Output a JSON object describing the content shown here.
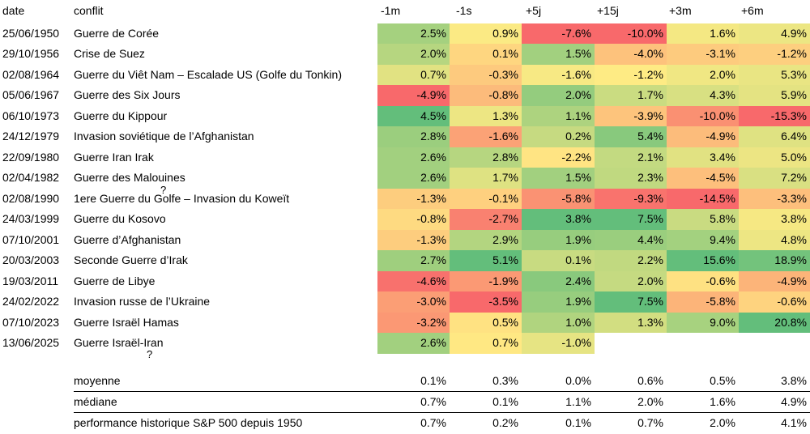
{
  "headers": {
    "date": "date",
    "conflict": "conflit",
    "cols": [
      "-1m",
      "-1s",
      "+5j",
      "+15j",
      "+3m",
      "+6m"
    ]
  },
  "rows": [
    {
      "date": "25/06/1950",
      "conflict": "Guerre de Corée",
      "values": [
        2.5,
        0.9,
        -7.6,
        -10.0,
        1.6,
        4.9
      ],
      "labels": [
        "2.5%",
        "0.9%",
        "-7.6%",
        "-10.0%",
        "1.6%",
        "4.9%"
      ]
    },
    {
      "date": "29/10/1956",
      "conflict": "Crise de Suez",
      "values": [
        2.0,
        0.1,
        1.5,
        -4.0,
        -3.1,
        -1.2
      ],
      "labels": [
        "2.0%",
        "0.1%",
        "1.5%",
        "-4.0%",
        "-3.1%",
        "-1.2%"
      ]
    },
    {
      "date": "02/08/1964",
      "conflict": "Guerre du Viêt Nam – Escalade US (Golfe du Tonkin)",
      "values": [
        0.7,
        -0.3,
        -1.6,
        -1.2,
        2.0,
        5.3
      ],
      "labels": [
        "0.7%",
        "-0.3%",
        "-1.6%",
        "-1.2%",
        "2.0%",
        "5.3%"
      ]
    },
    {
      "date": "05/06/1967",
      "conflict": "Guerre des Six Jours",
      "values": [
        -4.9,
        -0.8,
        2.0,
        1.7,
        4.3,
        5.9
      ],
      "labels": [
        "-4.9%",
        "-0.8%",
        "2.0%",
        "1.7%",
        "4.3%",
        "5.9%"
      ]
    },
    {
      "date": "06/10/1973",
      "conflict": "Guerre du Kippour",
      "values": [
        4.5,
        1.3,
        1.1,
        -3.9,
        -10.0,
        -15.3
      ],
      "labels": [
        "4.5%",
        "1.3%",
        "1.1%",
        "-3.9%",
        "-10.0%",
        "-15.3%"
      ]
    },
    {
      "date": "24/12/1979",
      "conflict": "Invasion soviétique de l’Afghanistan",
      "values": [
        2.8,
        -1.6,
        0.2,
        5.4,
        -4.9,
        6.4
      ],
      "labels": [
        "2.8%",
        "-1.6%",
        "0.2%",
        "5.4%",
        "-4.9%",
        "6.4%"
      ]
    },
    {
      "date": "22/09/1980",
      "conflict": "Guerre Iran  Irak",
      "values": [
        2.6,
        2.8,
        -2.2,
        2.1,
        3.4,
        5.0
      ],
      "labels": [
        "2.6%",
        "2.8%",
        "-2.2%",
        "2.1%",
        "3.4%",
        "5.0%"
      ]
    },
    {
      "date": "02/04/1982",
      "conflict": "Guerre des Malouines",
      "values": [
        2.6,
        1.7,
        1.5,
        2.3,
        -4.5,
        7.2
      ],
      "labels": [
        "2.6%",
        "1.7%",
        "1.5%",
        "2.3%",
        "-4.5%",
        "7.2%"
      ]
    },
    {
      "date": "02/08/1990",
      "conflict": "1ere Guerre du Golfe  – Invasion du Koweït",
      "values": [
        -1.3,
        -0.1,
        -5.8,
        -9.3,
        -14.5,
        -3.3
      ],
      "labels": [
        "-1.3%",
        "-0.1%",
        "-5.8%",
        "-9.3%",
        "-14.5%",
        "-3.3%"
      ]
    },
    {
      "date": "24/03/1999",
      "conflict": "Guerre du Kosovo",
      "values": [
        -0.8,
        -2.7,
        3.8,
        7.5,
        5.8,
        3.8
      ],
      "labels": [
        "-0.8%",
        "-2.7%",
        "3.8%",
        "7.5%",
        "5.8%",
        "3.8%"
      ]
    },
    {
      "date": "07/10/2001",
      "conflict": "Guerre d’Afghanistan",
      "values": [
        -1.3,
        2.9,
        1.9,
        4.4,
        9.4,
        4.8
      ],
      "labels": [
        "-1.3%",
        "2.9%",
        "1.9%",
        "4.4%",
        "9.4%",
        "4.8%"
      ]
    },
    {
      "date": "20/03/2003",
      "conflict": "Seconde Guerre d’Irak",
      "values": [
        2.7,
        5.1,
        0.1,
        2.2,
        15.6,
        18.9
      ],
      "labels": [
        "2.7%",
        "5.1%",
        "0.1%",
        "2.2%",
        "15.6%",
        "18.9%"
      ]
    },
    {
      "date": "19/03/2011",
      "conflict": "Guerre de Libye",
      "values": [
        -4.6,
        -1.9,
        2.4,
        2.0,
        -0.6,
        -4.9
      ],
      "labels": [
        "-4.6%",
        "-1.9%",
        "2.4%",
        "2.0%",
        "-0.6%",
        "-4.9%"
      ]
    },
    {
      "date": "24/02/2022",
      "conflict": "Invasion russe de l’Ukraine",
      "values": [
        -3.0,
        -3.5,
        1.9,
        7.5,
        -5.8,
        -0.6
      ],
      "labels": [
        "-3.0%",
        "-3.5%",
        "1.9%",
        "7.5%",
        "-5.8%",
        "-0.6%"
      ]
    },
    {
      "date": "07/10/2023",
      "conflict": "Guerre Israël  Hamas",
      "values": [
        -3.2,
        0.5,
        1.0,
        1.3,
        9.0,
        20.8
      ],
      "labels": [
        "-3.2%",
        "0.5%",
        "1.0%",
        "1.3%",
        "9.0%",
        "20.8%"
      ]
    },
    {
      "date": "13/06/2025",
      "conflict": "Guerre Israël-Iran",
      "values": [
        2.6,
        0.7,
        -1.0
      ],
      "labels": [
        "2.6%",
        "0.7%",
        "-1.0%"
      ]
    }
  ],
  "summary": [
    {
      "label": "moyenne",
      "labels": [
        "0.1%",
        "0.3%",
        "0.0%",
        "0.6%",
        "0.5%",
        "3.8%"
      ]
    },
    {
      "label": "médiane",
      "labels": [
        "0.7%",
        "0.1%",
        "1.1%",
        "2.0%",
        "1.6%",
        "4.9%"
      ]
    },
    {
      "label": "performance historique S&P 500 depuis 1950",
      "labels": [
        "0.7%",
        "0.2%",
        "0.1%",
        "0.7%",
        "2.0%",
        "4.1%"
      ]
    }
  ],
  "stray_marks": [
    "?",
    "?"
  ],
  "colors": {
    "worst": "#f8696b",
    "mid": "#ffeb84",
    "best": "#63be7b"
  }
}
